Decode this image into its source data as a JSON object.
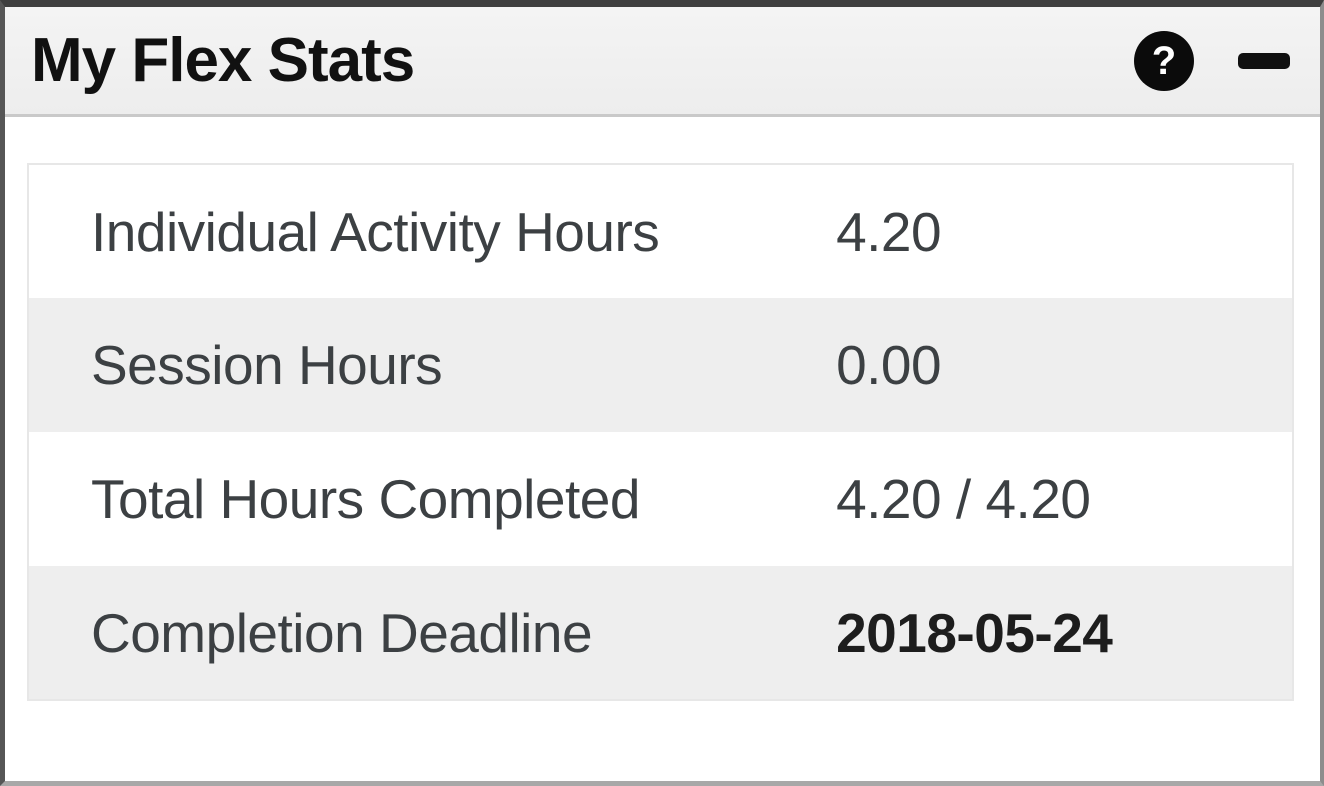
{
  "widget": {
    "title": "My Flex Stats",
    "help_glyph": "?",
    "stats": [
      {
        "label": "Individual Activity Hours",
        "value": "4.20"
      },
      {
        "label": "Session Hours",
        "value": "0.00"
      },
      {
        "label": "Total Hours Completed",
        "value": "4.20 / 4.20"
      },
      {
        "label": "Completion Deadline",
        "value": "2018-05-24"
      }
    ],
    "colors": {
      "header_bg": "#f0f0f0",
      "row_stripe": "#eeeeee",
      "icon_bg": "#0b0b0b",
      "text": "#3c4043",
      "border": "#8d8d8d"
    }
  }
}
